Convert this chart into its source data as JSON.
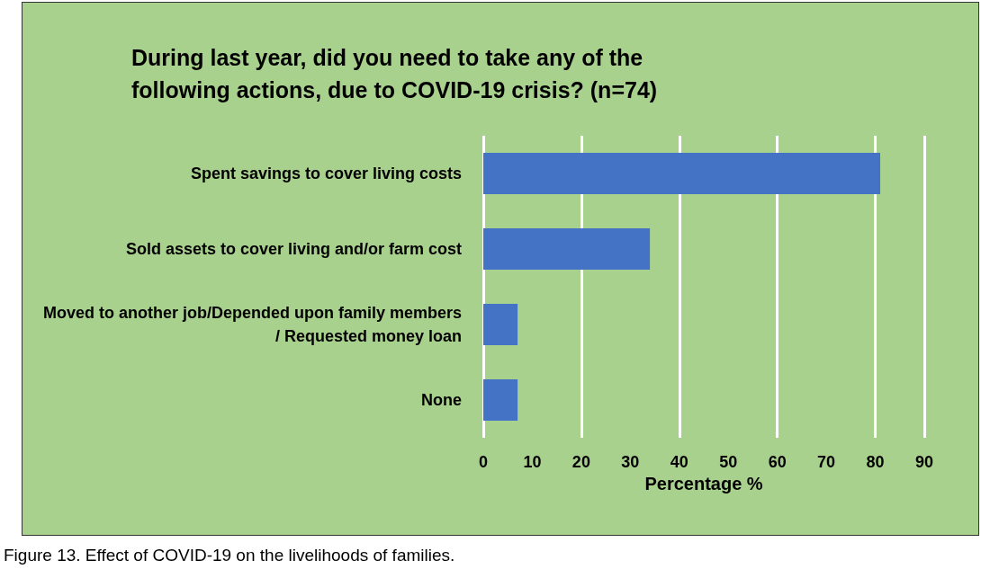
{
  "chart_data": {
    "type": "bar",
    "orientation": "horizontal",
    "title": "During last year, did you need to take any of the following actions, due to COVID-19 crisis? (n=74)",
    "xlabel": "Percentage %",
    "categories": [
      "Spent savings to cover living costs",
      "Sold assets to cover living and/or farm cost",
      "Moved to another job/Depended upon family members/ Requested money loan",
      "None"
    ],
    "values": [
      81,
      34,
      7,
      7
    ],
    "color": "#4472c4",
    "xlim": [
      0,
      90
    ],
    "xticks": [
      0,
      10,
      20,
      30,
      40,
      50,
      60,
      70,
      80,
      90
    ],
    "grid": "x",
    "annotations": [
      "Figure 13. Effect of COVID-19 on the livelihoods of families."
    ]
  }
}
